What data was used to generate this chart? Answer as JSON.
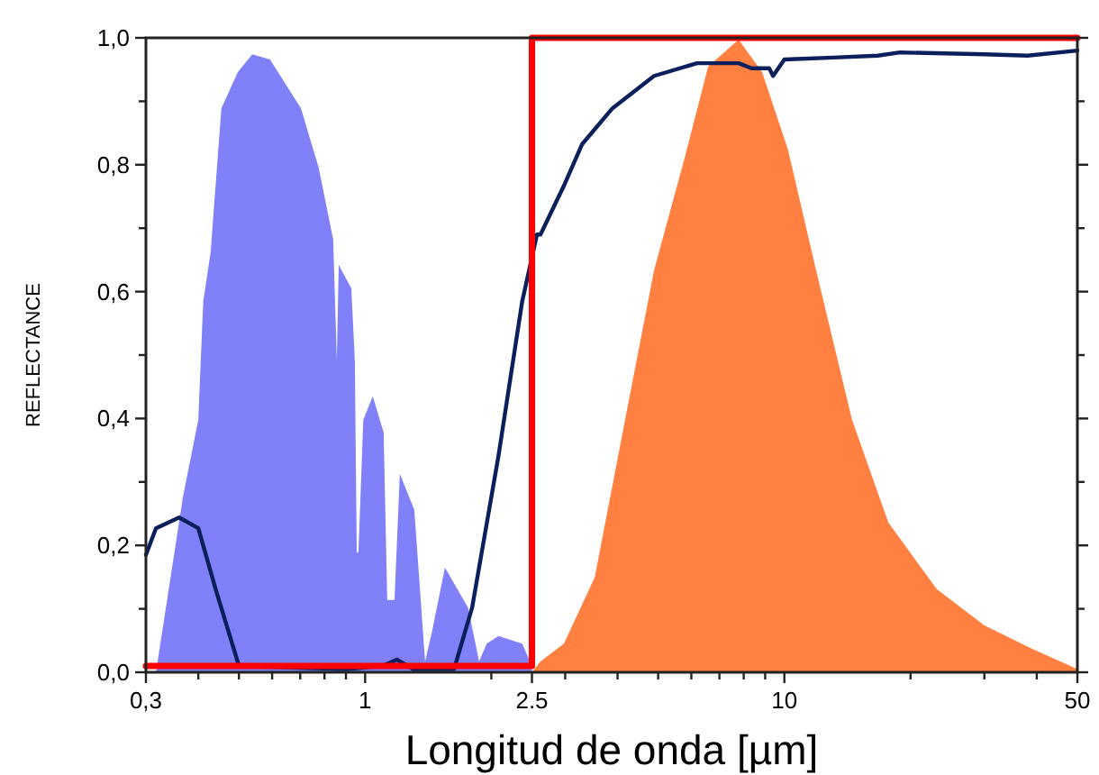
{
  "chart_data": {
    "type": "line",
    "xlabel": "Longitud de onda [µm]",
    "ylabel": "REFLECTANCE",
    "log": "x",
    "grid": false,
    "xlim": [
      0.3,
      50
    ],
    "ylim": [
      0,
      1
    ],
    "xticks": [
      {
        "value": 0.3,
        "label": "0,3"
      },
      {
        "value": 0.4,
        "label": null
      },
      {
        "value": 0.5,
        "label": null
      },
      {
        "value": 0.6,
        "label": null
      },
      {
        "value": 0.7,
        "label": null
      },
      {
        "value": 0.8,
        "label": null
      },
      {
        "value": 0.9,
        "label": null
      },
      1,
      {
        "value": 2,
        "label": null
      },
      {
        "value": 2.5,
        "label": "2.5"
      },
      {
        "value": 3,
        "label": null
      },
      {
        "value": 4,
        "label": null
      },
      {
        "value": 5,
        "label": null
      },
      {
        "value": 6,
        "label": null
      },
      {
        "value": 7,
        "label": null
      },
      {
        "value": 8,
        "label": null
      },
      {
        "value": 9,
        "label": null
      },
      10,
      {
        "value": 20,
        "label": null
      },
      {
        "value": 30,
        "label": null
      },
      {
        "value": 40,
        "label": null
      },
      50
    ],
    "yticks": [
      {
        "value": 0,
        "label": "0,0"
      },
      {
        "value": 0.1,
        "label": null
      },
      {
        "value": 0.2,
        "label": "0,2"
      },
      {
        "value": 0.3,
        "label": null
      },
      {
        "value": 0.4,
        "label": "0,4"
      },
      {
        "value": 0.5,
        "label": null
      },
      {
        "value": 0.6,
        "label": "0,6"
      },
      {
        "value": 0.7,
        "label": null
      },
      {
        "value": 0.8,
        "label": "0,8"
      },
      {
        "value": 0.9,
        "label": null
      },
      {
        "value": 1,
        "label": "1,0"
      }
    ],
    "series": [
      {
        "type": "area",
        "color": "#8080f8",
        "x": [
          0.317,
          0.368,
          0.4,
          0.411,
          0.428,
          0.454,
          0.497,
          0.538,
          0.593,
          0.703,
          0.775,
          0.839,
          0.856,
          0.865,
          0.927,
          0.945,
          0.955,
          0.964,
          0.99,
          1.043,
          1.107,
          1.129,
          1.175,
          1.21,
          1.31,
          1.39,
          1.445,
          1.55,
          1.76,
          1.87,
          1.95,
          2.08,
          2.37,
          2.5
        ],
        "values": [
          0,
          0.278,
          0.398,
          0.585,
          0.662,
          0.889,
          0.946,
          0.974,
          0.966,
          0.889,
          0.795,
          0.682,
          0.491,
          0.642,
          0.605,
          0.491,
          0.188,
          0.19,
          0.398,
          0.435,
          0.378,
          0.114,
          0.114,
          0.313,
          0.256,
          0.017,
          0.065,
          0.165,
          0.102,
          0.017,
          0.045,
          0.057,
          0.045,
          0.01
        ]
      },
      {
        "type": "area",
        "color": "#ff8040",
        "x": [
          2.5,
          2.62,
          2.98,
          3.53,
          4.17,
          4.89,
          5.78,
          6.58,
          7.78,
          8.85,
          10.2,
          11.9,
          14.5,
          17.7,
          23.1,
          30,
          39,
          50
        ],
        "values": [
          0,
          0.017,
          0.045,
          0.15,
          0.398,
          0.634,
          0.81,
          0.955,
          0.997,
          0.946,
          0.824,
          0.634,
          0.398,
          0.236,
          0.131,
          0.074,
          0.037,
          0.005
        ]
      },
      {
        "color": "#0a1f5c",
        "x": [
          0.3,
          0.317,
          0.36,
          0.4,
          0.44,
          0.5,
          0.9,
          1.1,
          1.19,
          1.3,
          1.63,
          1.8,
          2.08,
          2.37,
          2.57,
          2.62,
          2.98,
          3.29,
          3.89,
          4.89,
          6.19,
          7.78,
          8.35,
          9.2,
          9.4,
          10,
          13.1,
          16.7,
          18.9,
          30,
          38,
          50
        ],
        "values": [
          0.185,
          0.227,
          0.244,
          0.227,
          0.131,
          0.01,
          0.005,
          0.01,
          0.02,
          0.005,
          0.005,
          0.102,
          0.341,
          0.585,
          0.69,
          0.69,
          0.767,
          0.832,
          0.889,
          0.94,
          0.96,
          0.96,
          0.952,
          0.952,
          0.94,
          0.966,
          0.969,
          0.972,
          0.977,
          0.974,
          0.972,
          0.98
        ]
      },
      {
        "color": "#ff0000",
        "x": [
          0.3,
          2.5,
          2.5,
          50
        ],
        "values": [
          0.01,
          0.01,
          1,
          1
        ]
      }
    ]
  }
}
